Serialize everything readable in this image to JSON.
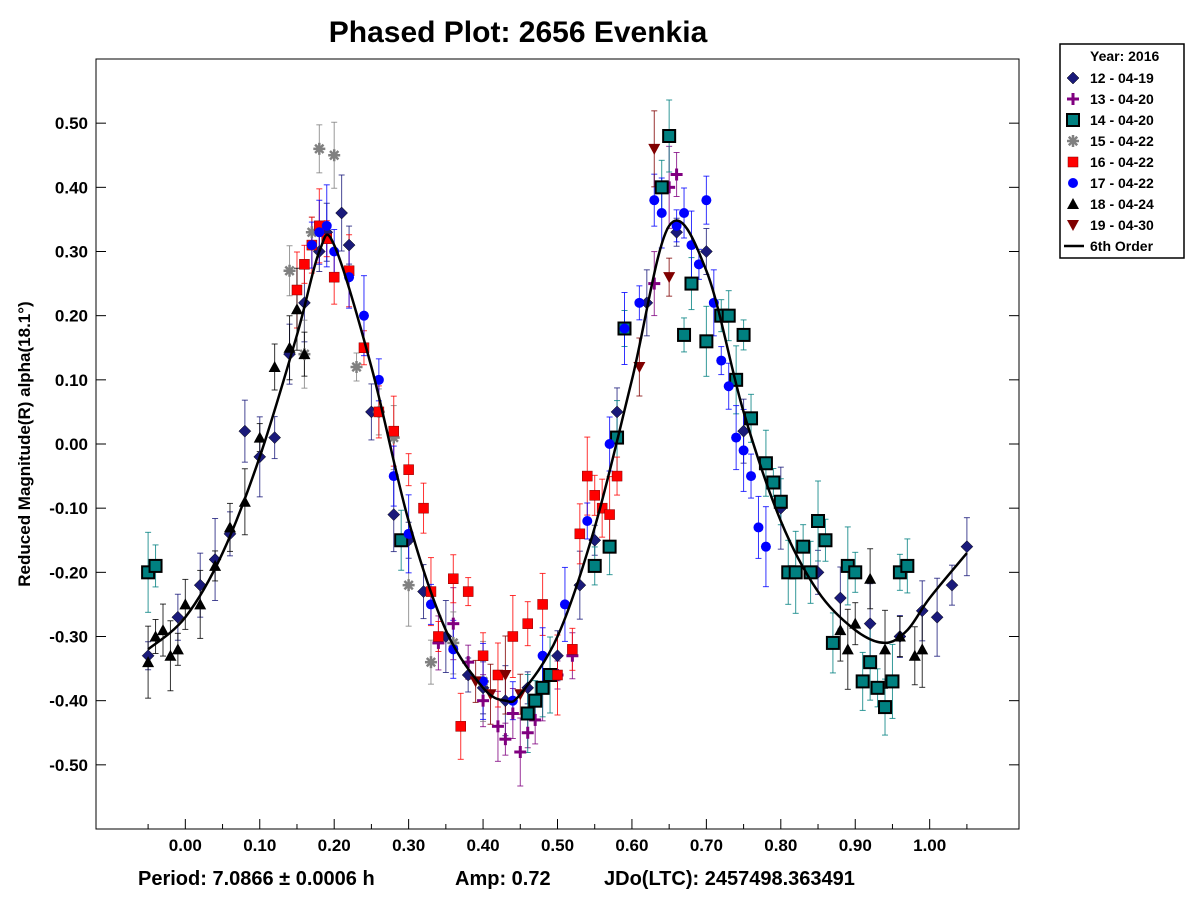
{
  "chart_data": {
    "type": "scatter",
    "title": "Phased Plot: 2656 Evenkia",
    "ylabel": "Reduced Magnitude(R) alpha(18.1°)",
    "xlim": [
      -0.12,
      1.12
    ],
    "ylim": [
      0.6,
      -0.6
    ],
    "y_inverted": true,
    "grid": false,
    "x_ticks": [
      0.0,
      0.1,
      0.2,
      0.3,
      0.4,
      0.5,
      0.6,
      0.7,
      0.8,
      0.9,
      1.0
    ],
    "x_tick_labels": [
      "0.00",
      "0.10",
      "0.20",
      "0.30",
      "0.40",
      "0.50",
      "0.60",
      "0.70",
      "0.80",
      "0.90",
      "1.00"
    ],
    "y_ticks": [
      -0.5,
      -0.4,
      -0.3,
      -0.2,
      -0.1,
      0.0,
      0.1,
      0.2,
      0.3,
      0.4,
      0.5
    ],
    "y_tick_labels": [
      "-0.50",
      "-0.40",
      "-0.30",
      "-0.20",
      "-0.10",
      "0.00",
      "0.10",
      "0.20",
      "0.30",
      "0.40",
      "0.50"
    ],
    "legend": {
      "placement": "outside-right-top",
      "header": "Year: 2016",
      "entries": [
        {
          "label": "12 - 04-19",
          "marker": "diamond",
          "color": "#1a1a7a"
        },
        {
          "label": "13 - 04-20",
          "marker": "plus",
          "color": "#800080"
        },
        {
          "label": "14 - 04-20",
          "marker": "square-outlined",
          "color": "#008080"
        },
        {
          "label": "15 - 04-22",
          "marker": "asterisk",
          "color": "#808080"
        },
        {
          "label": "16 - 04-22",
          "marker": "square",
          "color": "#ff0000"
        },
        {
          "label": "17 - 04-22",
          "marker": "circle",
          "color": "#0000ff"
        },
        {
          "label": "18 - 04-24",
          "marker": "triangle-up",
          "color": "#000000"
        },
        {
          "label": "19 - 04-30",
          "marker": "triangle-down",
          "color": "#800000"
        },
        {
          "label": "6th Order",
          "marker": "line",
          "color": "#000000"
        }
      ]
    },
    "fit_curve": {
      "name": "6th Order",
      "x": [
        -0.05,
        0.0,
        0.05,
        0.1,
        0.15,
        0.18,
        0.2,
        0.25,
        0.3,
        0.35,
        0.4,
        0.43,
        0.45,
        0.5,
        0.55,
        0.6,
        0.65,
        0.7,
        0.75,
        0.8,
        0.85,
        0.9,
        0.94,
        0.97,
        1.0,
        1.05
      ],
      "y": [
        -0.32,
        -0.27,
        -0.17,
        -0.02,
        0.17,
        0.3,
        0.31,
        0.12,
        -0.12,
        -0.29,
        -0.38,
        -0.4,
        -0.39,
        -0.3,
        -0.13,
        0.1,
        0.34,
        0.27,
        0.05,
        -0.12,
        -0.23,
        -0.29,
        -0.31,
        -0.29,
        -0.24,
        -0.17
      ]
    },
    "series": [
      {
        "name": "12 - 04-19",
        "x": [
          -0.05,
          -0.01,
          0.02,
          0.04,
          0.06,
          0.08,
          0.1,
          0.12,
          0.14,
          0.16,
          0.18,
          0.19,
          0.21,
          0.22,
          0.25,
          0.28,
          0.3,
          0.32,
          0.35,
          0.38,
          0.4,
          0.43,
          0.46,
          0.5,
          0.53,
          0.55,
          0.58,
          0.62,
          0.66,
          0.7,
          0.75,
          0.8,
          0.85,
          0.88,
          0.92,
          0.96,
          0.99,
          1.01,
          1.03,
          1.05
        ],
        "y": [
          -0.33,
          -0.27,
          -0.22,
          -0.18,
          -0.14,
          0.02,
          -0.02,
          0.01,
          0.14,
          0.22,
          0.3,
          0.33,
          0.36,
          0.31,
          0.05,
          -0.11,
          -0.15,
          -0.23,
          -0.3,
          -0.36,
          -0.38,
          -0.4,
          -0.38,
          -0.33,
          -0.22,
          -0.15,
          0.05,
          0.22,
          0.33,
          0.3,
          0.02,
          -0.1,
          -0.2,
          -0.24,
          -0.28,
          -0.3,
          -0.26,
          -0.27,
          -0.22,
          -0.16
        ]
      },
      {
        "name": "13 - 04-20",
        "x": [
          0.34,
          0.36,
          0.38,
          0.4,
          0.42,
          0.43,
          0.44,
          0.45,
          0.46,
          0.47,
          0.48,
          0.5,
          0.52,
          0.63,
          0.65,
          0.66
        ],
        "y": [
          -0.31,
          -0.28,
          -0.34,
          -0.4,
          -0.44,
          -0.46,
          -0.42,
          -0.48,
          -0.45,
          -0.43,
          -0.38,
          -0.36,
          -0.33,
          0.25,
          0.4,
          0.42
        ]
      },
      {
        "name": "14 - 04-20",
        "x": [
          -0.05,
          -0.04,
          0.29,
          0.46,
          0.47,
          0.48,
          0.49,
          0.55,
          0.57,
          0.58,
          0.59,
          0.64,
          0.65,
          0.67,
          0.68,
          0.7,
          0.72,
          0.73,
          0.74,
          0.75,
          0.76,
          0.78,
          0.79,
          0.8,
          0.81,
          0.82,
          0.83,
          0.84,
          0.85,
          0.86,
          0.87,
          0.89,
          0.9,
          0.91,
          0.92,
          0.93,
          0.94,
          0.95,
          0.96,
          0.97
        ],
        "y": [
          -0.2,
          -0.19,
          -0.15,
          -0.42,
          -0.4,
          -0.38,
          -0.36,
          -0.19,
          -0.16,
          0.01,
          0.18,
          0.4,
          0.48,
          0.17,
          0.25,
          0.16,
          0.2,
          0.2,
          0.1,
          0.17,
          0.04,
          -0.03,
          -0.06,
          -0.09,
          -0.2,
          -0.2,
          -0.16,
          -0.2,
          -0.12,
          -0.15,
          -0.31,
          -0.19,
          -0.2,
          -0.37,
          -0.34,
          -0.38,
          -0.41,
          -0.37,
          -0.2,
          -0.19
        ]
      },
      {
        "name": "15 - 04-22",
        "x": [
          0.14,
          0.16,
          0.17,
          0.18,
          0.2,
          0.23,
          0.26,
          0.28,
          0.3,
          0.33,
          0.36,
          0.4
        ],
        "y": [
          0.27,
          0.14,
          0.33,
          0.46,
          0.45,
          0.12,
          0.05,
          0.01,
          -0.22,
          -0.34,
          -0.31,
          -0.37
        ]
      },
      {
        "name": "16 - 04-22",
        "x": [
          0.15,
          0.16,
          0.17,
          0.18,
          0.19,
          0.2,
          0.22,
          0.24,
          0.26,
          0.28,
          0.3,
          0.32,
          0.33,
          0.34,
          0.36,
          0.37,
          0.38,
          0.4,
          0.42,
          0.44,
          0.46,
          0.48,
          0.5,
          0.52,
          0.53,
          0.54,
          0.55,
          0.56,
          0.57,
          0.58
        ],
        "y": [
          0.24,
          0.28,
          0.31,
          0.34,
          0.32,
          0.26,
          0.27,
          0.15,
          0.05,
          0.02,
          -0.04,
          -0.1,
          -0.23,
          -0.3,
          -0.21,
          -0.44,
          -0.23,
          -0.33,
          -0.36,
          -0.3,
          -0.28,
          -0.25,
          -0.36,
          -0.32,
          -0.14,
          -0.05,
          -0.08,
          -0.1,
          -0.11,
          -0.05
        ]
      },
      {
        "name": "17 - 04-22",
        "x": [
          0.17,
          0.18,
          0.19,
          0.2,
          0.22,
          0.24,
          0.26,
          0.28,
          0.3,
          0.33,
          0.36,
          0.4,
          0.44,
          0.48,
          0.51,
          0.54,
          0.57,
          0.59,
          0.61,
          0.63,
          0.64,
          0.66,
          0.67,
          0.68,
          0.69,
          0.7,
          0.71,
          0.72,
          0.73,
          0.74,
          0.75,
          0.76,
          0.77,
          0.78
        ],
        "y": [
          0.31,
          0.33,
          0.34,
          0.3,
          0.26,
          0.2,
          0.1,
          -0.05,
          -0.14,
          -0.25,
          -0.32,
          -0.37,
          -0.4,
          -0.33,
          -0.25,
          -0.12,
          0.0,
          0.18,
          0.22,
          0.38,
          0.36,
          0.34,
          0.36,
          0.31,
          0.28,
          0.38,
          0.22,
          0.13,
          0.09,
          0.01,
          -0.01,
          -0.05,
          -0.13,
          -0.16
        ]
      },
      {
        "name": "18 - 04-24",
        "x": [
          -0.05,
          -0.04,
          -0.03,
          -0.02,
          -0.01,
          0.0,
          0.02,
          0.04,
          0.06,
          0.08,
          0.1,
          0.12,
          0.14,
          0.15,
          0.16,
          0.88,
          0.89,
          0.9,
          0.92,
          0.94,
          0.96,
          0.98,
          0.99
        ],
        "y": [
          -0.34,
          -0.3,
          -0.29,
          -0.33,
          -0.32,
          -0.25,
          -0.25,
          -0.19,
          -0.13,
          -0.09,
          0.01,
          0.12,
          0.15,
          0.21,
          0.14,
          -0.29,
          -0.32,
          -0.28,
          -0.21,
          -0.32,
          -0.3,
          -0.33,
          -0.32
        ]
      },
      {
        "name": "19 - 04-30",
        "x": [
          0.39,
          0.41,
          0.43,
          0.45,
          0.61,
          0.63,
          0.65
        ],
        "y": [
          -0.37,
          -0.39,
          -0.36,
          -0.39,
          0.12,
          0.46,
          0.26
        ]
      }
    ]
  },
  "footer": {
    "period": "Period: 7.0866 ± 0.0006 h",
    "amp": "Amp: 0.72",
    "jd": "JDo(LTC): 2457498.363491"
  }
}
